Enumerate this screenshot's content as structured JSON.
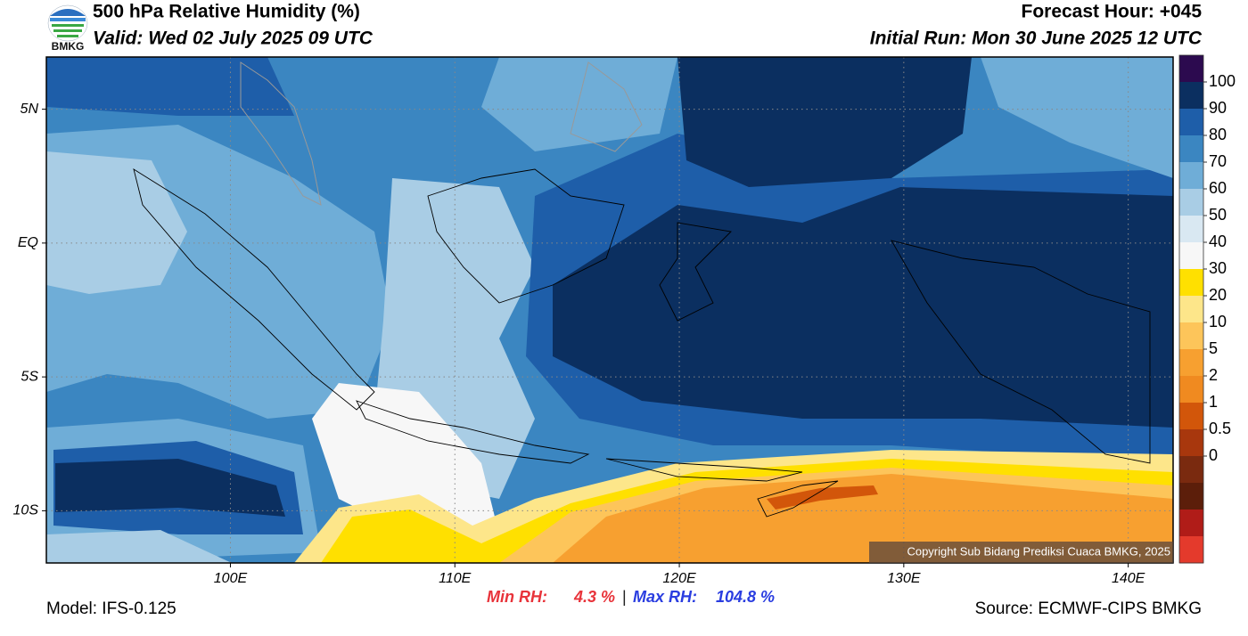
{
  "header": {
    "logo_text": "BMKG",
    "title": "500 hPa Relative Humidity (%)",
    "valid": "Valid: Wed 02 July 2025 09 UTC",
    "forecast_hour": "Forecast Hour: +045",
    "initial_run": "Initial Run: Mon 30 June 2025 12 UTC"
  },
  "map": {
    "xlim": [
      91.8,
      142
    ],
    "ylim": [
      -11.95,
      6.95
    ],
    "xticks": [
      {
        "value": 100,
        "label": "100E"
      },
      {
        "value": 110,
        "label": "110E"
      },
      {
        "value": 120,
        "label": "120E"
      },
      {
        "value": 130,
        "label": "130E"
      },
      {
        "value": 140,
        "label": "140E"
      }
    ],
    "yticks": [
      {
        "value": 5,
        "label": "5N"
      },
      {
        "value": 0,
        "label": "EQ"
      },
      {
        "value": -5,
        "label": "5S"
      },
      {
        "value": -10,
        "label": "10S"
      }
    ],
    "grid": true,
    "copyright": "Copyright Sub Bidang Prediksi Cuaca BMKG, 2025"
  },
  "colorbar": {
    "ticks": [
      100,
      90,
      80,
      70,
      60,
      50,
      40,
      30,
      20,
      10,
      5,
      2,
      1,
      0.5,
      0
    ],
    "colors": [
      "#2c0a4f",
      "#0b2f60",
      "#1e5ea9",
      "#3b86c1",
      "#6fadd7",
      "#a9cde5",
      "#d9e8f2",
      "#f7f7f7",
      "#ffe000",
      "#fde68a",
      "#fdc55a",
      "#f7a030",
      "#f08a20",
      "#d2560a",
      "#a8370d",
      "#7a2a0f",
      "#5c1e0a",
      "#b01c18",
      "#e43a2c"
    ]
  },
  "footer": {
    "model": "Model: IFS-0.125",
    "min_label": "Min RH:",
    "min_value": "4.3 %",
    "separator": "|",
    "max_label": "Max RH:",
    "max_value": "104.8 %",
    "source": "Source: ECMWF-CIPS BMKG"
  }
}
